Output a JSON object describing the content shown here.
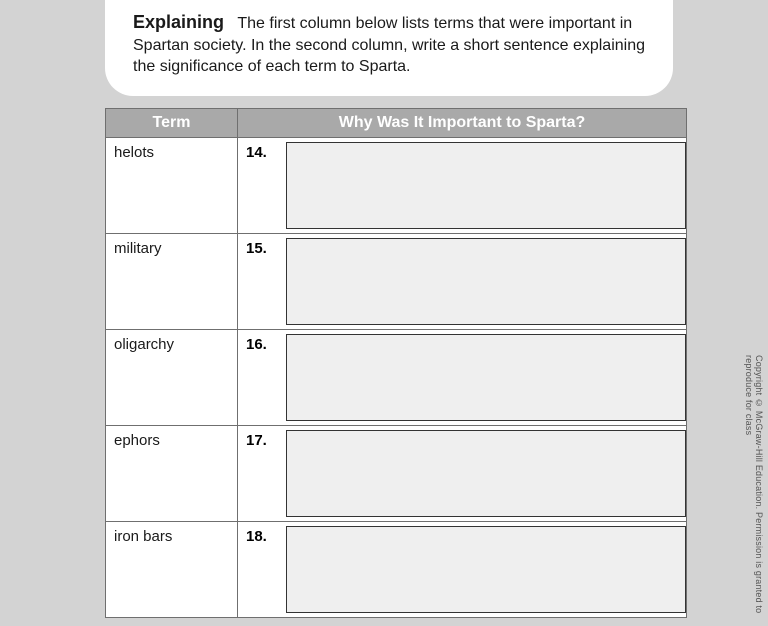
{
  "instruction": {
    "title": "Explaining",
    "body": "The first column below lists terms that were important in Spartan society. In the second column, write a short sentence explaining the significance of each term to Sparta."
  },
  "table": {
    "headers": {
      "term": "Term",
      "why": "Why Was It Important to Sparta?"
    },
    "rows": [
      {
        "term": "helots",
        "num": "14."
      },
      {
        "term": "military",
        "num": "15."
      },
      {
        "term": "oligarchy",
        "num": "16."
      },
      {
        "term": "ephors",
        "num": "17."
      },
      {
        "term": "iron bars",
        "num": "18."
      }
    ]
  },
  "copyright": "Copyright © McGraw-Hill Education. Permission is granted to reproduce for class",
  "colors": {
    "page_bg": "#d3d3d3",
    "box_bg": "#ffffff",
    "header_bg": "#a9a9a9",
    "header_text": "#ffffff",
    "border": "#6f6f6f",
    "input_bg": "#efefef",
    "text": "#1a1a1a"
  }
}
